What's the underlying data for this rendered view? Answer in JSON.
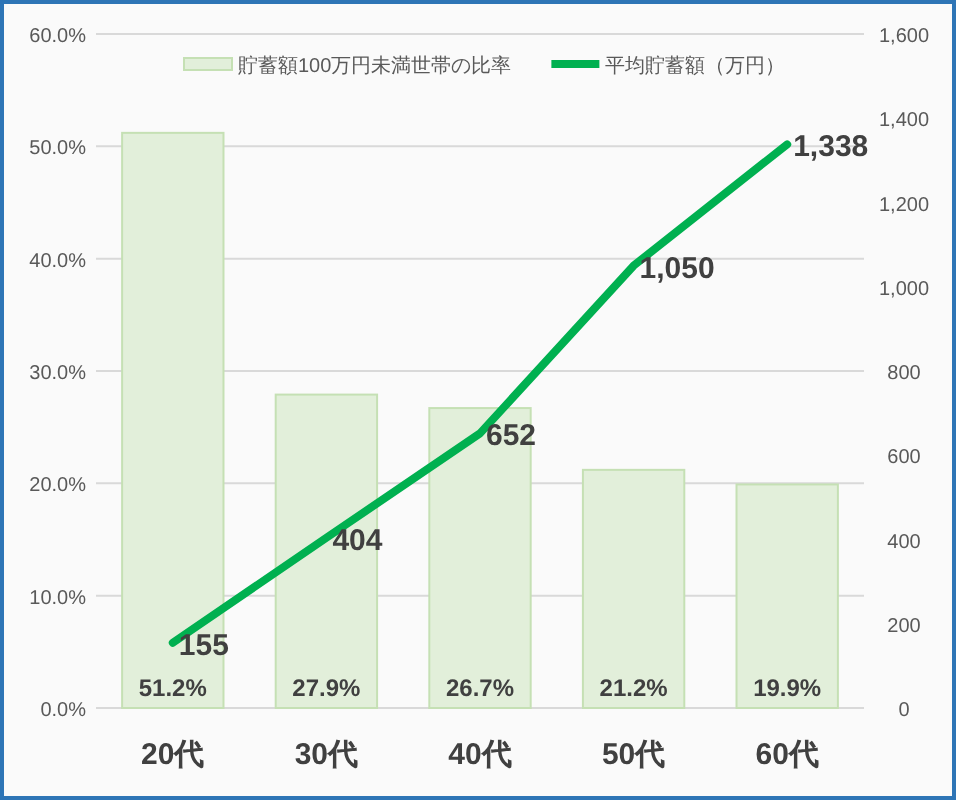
{
  "chart_data": {
    "type": "bar",
    "categories": [
      "20代",
      "30代",
      "40代",
      "50代",
      "60代"
    ],
    "series": [
      {
        "name": "貯蓄額100万円未満世帯の比率",
        "color": "#e2efda",
        "values": [
          51.2,
          27.9,
          26.7,
          21.2,
          19.9
        ],
        "value_labels": [
          "51.2%",
          "27.9%",
          "26.7%",
          "21.2%",
          "19.9%"
        ]
      },
      {
        "name": "平均貯蓄額（万円）",
        "type": "line",
        "axis": "y2",
        "color": "#00b050",
        "values": [
          155,
          404,
          652,
          1050,
          1338
        ],
        "value_labels": [
          "155",
          "404",
          "652",
          "1,050",
          "1,338"
        ]
      }
    ],
    "ylim": [
      0,
      60
    ],
    "yticks": [
      {
        "value": 0,
        "label": "0.0%"
      },
      {
        "value": 10,
        "label": "10.0%"
      },
      {
        "value": 20,
        "label": "20.0%"
      },
      {
        "value": 30,
        "label": "30.0%"
      },
      {
        "value": 40,
        "label": "40.0%"
      },
      {
        "value": 50,
        "label": "50.0%"
      },
      {
        "value": 60,
        "label": "60.0%"
      }
    ],
    "y2lim": [
      0,
      1600
    ],
    "y2ticks": [
      0,
      200,
      400,
      600,
      800,
      {
        "value": 1000,
        "label": "1,000"
      },
      {
        "value": 1200,
        "label": "1,200"
      },
      {
        "value": 1400,
        "label": "1,400"
      },
      {
        "value": 1600,
        "label": "1,600"
      }
    ],
    "grid": "y",
    "legend": "top"
  }
}
